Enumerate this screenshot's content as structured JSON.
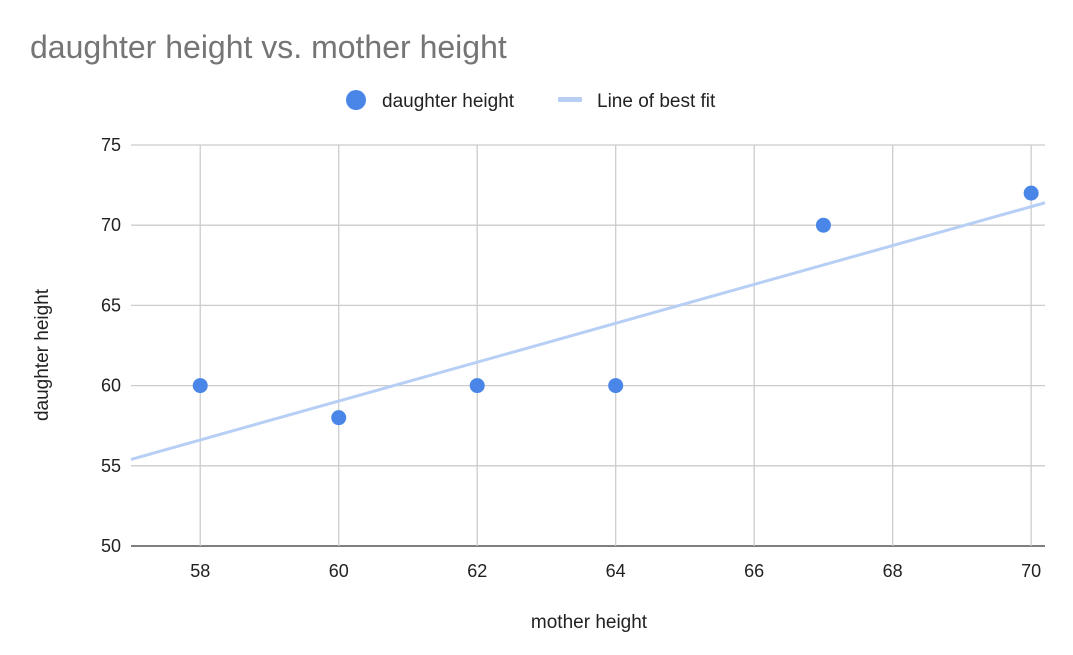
{
  "chart_data": {
    "type": "scatter",
    "title": "daughter height vs. mother height",
    "xlabel": "mother height",
    "ylabel": "daughter height",
    "xlim": [
      57,
      70.2
    ],
    "ylim": [
      50,
      75
    ],
    "x_ticks": [
      58,
      60,
      62,
      64,
      66,
      68,
      70
    ],
    "y_ticks": [
      50,
      55,
      60,
      65,
      70,
      75
    ],
    "grid": true,
    "legend_position": "top",
    "series": [
      {
        "name": "daughter height",
        "kind": "points",
        "color": "#4a86e8",
        "x": [
          58,
          60,
          62,
          64,
          67,
          70
        ],
        "y": [
          60,
          58,
          60,
          60,
          70,
          72
        ]
      },
      {
        "name": "Line of best fit",
        "kind": "trendline",
        "color": "#b7cff5",
        "x": [
          57,
          70.2
        ],
        "y": [
          55.4,
          71.4
        ]
      }
    ]
  }
}
